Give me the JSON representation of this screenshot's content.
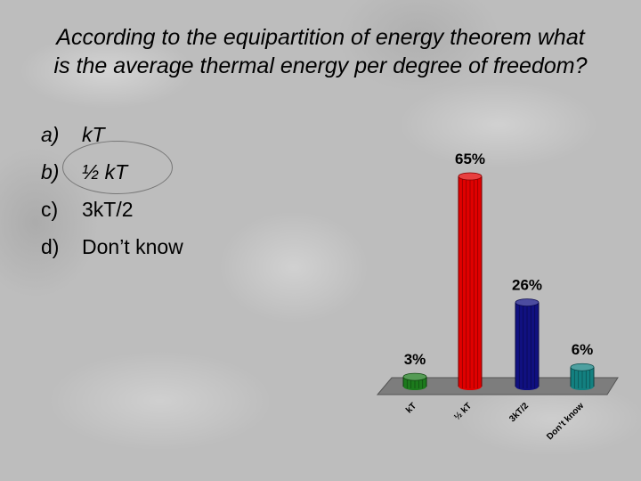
{
  "question": {
    "line1": "According to the equipartition of energy theorem what",
    "line2": "is the average thermal energy per degree of freedom?"
  },
  "options": [
    {
      "letter": "a)",
      "text": "kT"
    },
    {
      "letter": "b)",
      "text": "½ kT"
    },
    {
      "letter": "c)",
      "text": "3kT/2"
    },
    {
      "letter": "d)",
      "text": "Don’t know"
    }
  ],
  "highlighted_option": "b)",
  "chart_data": {
    "type": "bar",
    "categories": [
      "kT",
      "½ kT",
      "3kT/2",
      "Don’t know"
    ],
    "values": [
      3,
      65,
      26,
      6
    ],
    "data_labels": [
      "3%",
      "65%",
      "26%",
      "6%"
    ],
    "colors": [
      "#1c7a1c",
      "#e00000",
      "#101080",
      "#138080"
    ],
    "ylim": [
      0,
      65
    ],
    "title": "",
    "xlabel": "",
    "ylabel": "",
    "grid": false
  }
}
